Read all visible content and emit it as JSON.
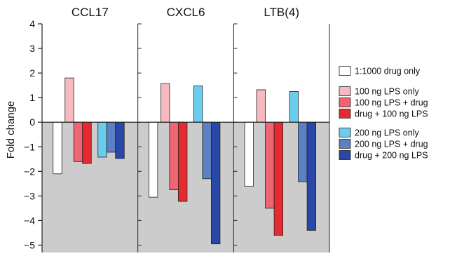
{
  "chart_data": {
    "type": "bar",
    "ylabel": "Fold change",
    "ylim": [
      -5.3,
      4
    ],
    "yticks": [
      4,
      3,
      2,
      1,
      0,
      -1,
      -2,
      -3,
      -4,
      -5
    ],
    "ytick_labels": [
      "4",
      "3",
      "2",
      "1",
      "0",
      "−1",
      "−2",
      "−3",
      "−4",
      "−5"
    ],
    "grid": false,
    "negative_region_fill": "#cccccc",
    "legend_position": "right",
    "panels": [
      "CCL17",
      "CXCL6",
      "LTB(4)"
    ],
    "series": [
      {
        "name": "1:1000 drug only",
        "color": "#ffffff",
        "values": [
          -2.1,
          -3.05,
          -2.6
        ]
      },
      {
        "name": "100 ng LPS only",
        "color": "#f6b9c0",
        "values": [
          1.8,
          1.57,
          1.32
        ]
      },
      {
        "name": "100 ng LPS + drug",
        "color": "#ee6672",
        "values": [
          -1.6,
          -2.75,
          -3.5
        ]
      },
      {
        "name": "drug + 100 ng LPS",
        "color": "#e52a31",
        "values": [
          -1.68,
          -3.22,
          -4.6
        ]
      },
      {
        "name": "200 ng LPS only",
        "color": "#6cccee",
        "values": [
          -1.42,
          1.48,
          1.25
        ]
      },
      {
        "name": "200 ng LPS + drug",
        "color": "#5b80c4",
        "values": [
          -1.22,
          -2.3,
          -2.42
        ]
      },
      {
        "name": "drug + 200 ng LPS",
        "color": "#2847a6",
        "values": [
          -1.48,
          -4.95,
          -4.4
        ]
      }
    ]
  }
}
